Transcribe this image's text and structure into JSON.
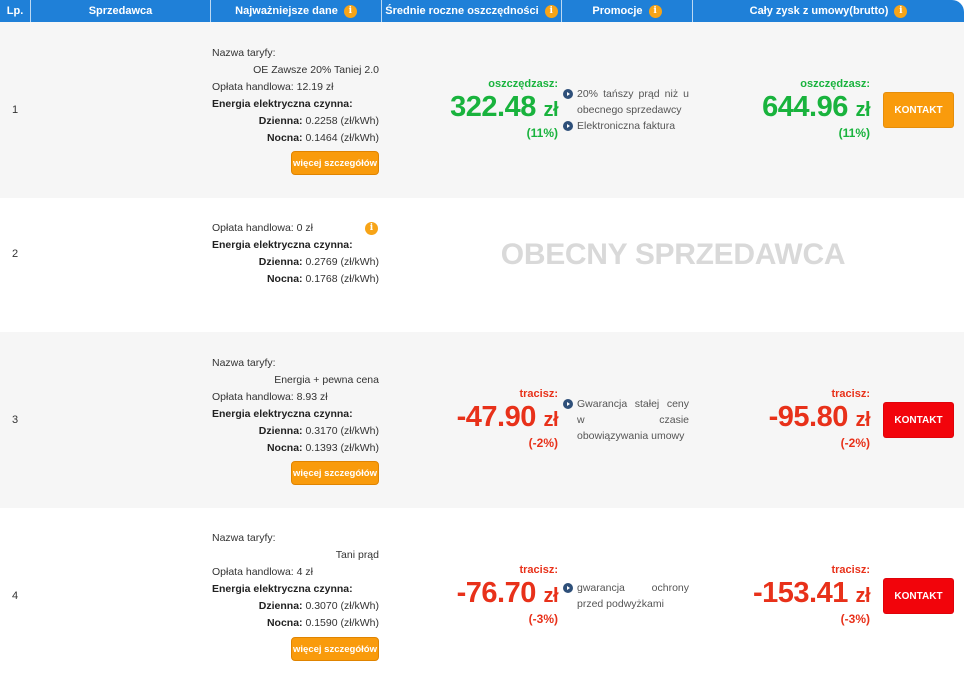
{
  "header": {
    "lp": "Lp.",
    "seller": "Sprzedawca",
    "key_data": "Najważniejsze dane",
    "avg_savings": "Średnie roczne oszczędności",
    "promotions": "Promocje",
    "total_profit": "Cały zysk z umowy(brutto)"
  },
  "labels": {
    "tariff_name": "Nazwa taryfy:",
    "energy": "Energia elektryczna czynna:",
    "day": "Dzienna:",
    "night": "Nocna:",
    "more": "więcej szczegółów",
    "contact": "KONTAKT",
    "current_seller": "OBECNY SPRZEDAWCA"
  },
  "rows": [
    {
      "lp": "1",
      "tariff": "OE Zawsze 20% Taniej 2.0",
      "fee": "Opłata handlowa: 12.19 zł",
      "day": " 0.2258 (zł/kWh)",
      "night": " 0.1464 (zł/kWh)",
      "savings_label": "oszczędzasz:",
      "savings_value": "322.48",
      "savings_pct": "(11%)",
      "promos": [
        "20% tańszy prąd niż u obecnego sprzedawcy",
        "Elektroniczna faktura"
      ],
      "total_label": "oszczędzasz:",
      "total_value": "644.96",
      "total_pct": "(11%)"
    },
    {
      "lp": "2",
      "fee": "Opłata handlowa: 0 zł",
      "day": " 0.2769 (zł/kWh)",
      "night": " 0.1768 (zł/kWh)"
    },
    {
      "lp": "3",
      "tariff": "Energia + pewna cena",
      "fee": "Opłata handlowa: 8.93 zł",
      "day": " 0.3170 (zł/kWh)",
      "night": " 0.1393 (zł/kWh)",
      "savings_label": "tracisz:",
      "savings_value": "-47.90",
      "savings_pct": "(-2%)",
      "promos": [
        "Gwarancja stałej ceny w czasie obowiązywania umowy"
      ],
      "total_label": "tracisz:",
      "total_value": "-95.80",
      "total_pct": "(-2%)"
    },
    {
      "lp": "4",
      "tariff": "Tani prąd",
      "fee": "Opłata handlowa: 4 zł",
      "day": " 0.3070 (zł/kWh)",
      "night": " 0.1590 (zł/kWh)",
      "savings_label": "tracisz:",
      "savings_value": "-76.70",
      "savings_pct": "(-3%)",
      "promos": [
        "gwarancja ochrony przed podwyżkami"
      ],
      "total_label": "tracisz:",
      "total_value": "-153.41",
      "total_pct": "(-3%)"
    }
  ],
  "currency": "zł",
  "colors": {
    "header_bg": "#1f80d8",
    "positive": "#19b33d",
    "negative": "#e8311a",
    "button_orange": "#f99b0c",
    "button_red": "#f2040b"
  }
}
